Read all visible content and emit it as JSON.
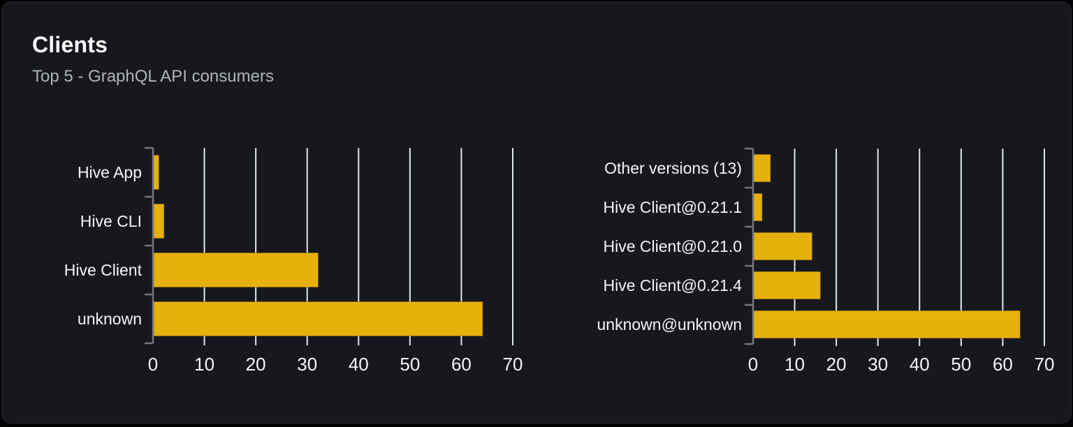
{
  "card": {
    "title": "Clients",
    "subtitle": "Top 5 - GraphQL API consumers"
  },
  "colors": {
    "bar": "#e7b10d",
    "bar_border": "#93700a",
    "grid": "#e2e6ee",
    "axis": "#74767c",
    "label_text": "#f4f5f6",
    "tick_text": "#f4f5f6",
    "card_bg": "#16181d",
    "page_bg": "#020203"
  },
  "chart_data": [
    {
      "type": "bar",
      "orientation": "horizontal",
      "name": "top-clients",
      "categories": [
        "Hive App",
        "Hive CLI",
        "Hive Client",
        "unknown"
      ],
      "values": [
        1,
        2,
        32,
        64
      ],
      "xlim": [
        0,
        70
      ],
      "xticks": [
        0,
        10,
        20,
        30,
        40,
        50,
        60,
        70
      ],
      "xtick_labels": [
        "0",
        "10",
        "20",
        "30",
        "40",
        "50",
        "60",
        "70"
      ],
      "xlabel": "",
      "ylabel": "",
      "grid": true,
      "legend": false
    },
    {
      "type": "bar",
      "orientation": "horizontal",
      "name": "top-client-versions",
      "categories": [
        "Other versions (13)",
        "Hive Client@0.21.1",
        "Hive Client@0.21.0",
        "Hive Client@0.21.4",
        "unknown@unknown"
      ],
      "values": [
        4,
        2,
        14,
        16,
        64
      ],
      "xlim": [
        0,
        70
      ],
      "xticks": [
        0,
        10,
        20,
        30,
        40,
        50,
        60,
        70
      ],
      "xtick_labels": [
        "0",
        "10",
        "20",
        "30",
        "40",
        "50",
        "60",
        "70"
      ],
      "xlabel": "",
      "ylabel": "",
      "grid": true,
      "legend": false
    }
  ]
}
